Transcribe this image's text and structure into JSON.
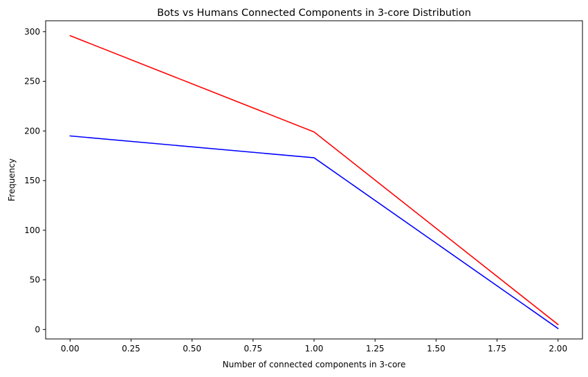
{
  "chart_data": {
    "type": "line",
    "title": "Bots vs Humans Connected Components in 3-core Distribution",
    "xlabel": "Number of connected components in 3-core",
    "ylabel": "Frequency",
    "xlim": [
      -0.1,
      2.1
    ],
    "ylim": [
      -9.5,
      311
    ],
    "xticks": [
      0.0,
      0.25,
      0.5,
      0.75,
      1.0,
      1.25,
      1.5,
      1.75,
      2.0
    ],
    "xtick_labels": [
      "0.00",
      "0.25",
      "0.50",
      "0.75",
      "1.00",
      "1.25",
      "1.50",
      "1.75",
      "2.00"
    ],
    "yticks": [
      0,
      50,
      100,
      150,
      200,
      250,
      300
    ],
    "ytick_labels": [
      "0",
      "50",
      "100",
      "150",
      "200",
      "250",
      "300"
    ],
    "grid": false,
    "legend": false,
    "x": [
      0,
      1,
      2
    ],
    "series": [
      {
        "color": "#ff0000",
        "values": [
          296,
          199,
          5
        ]
      },
      {
        "color": "#0000ff",
        "values": [
          195,
          173,
          1
        ]
      }
    ]
  }
}
